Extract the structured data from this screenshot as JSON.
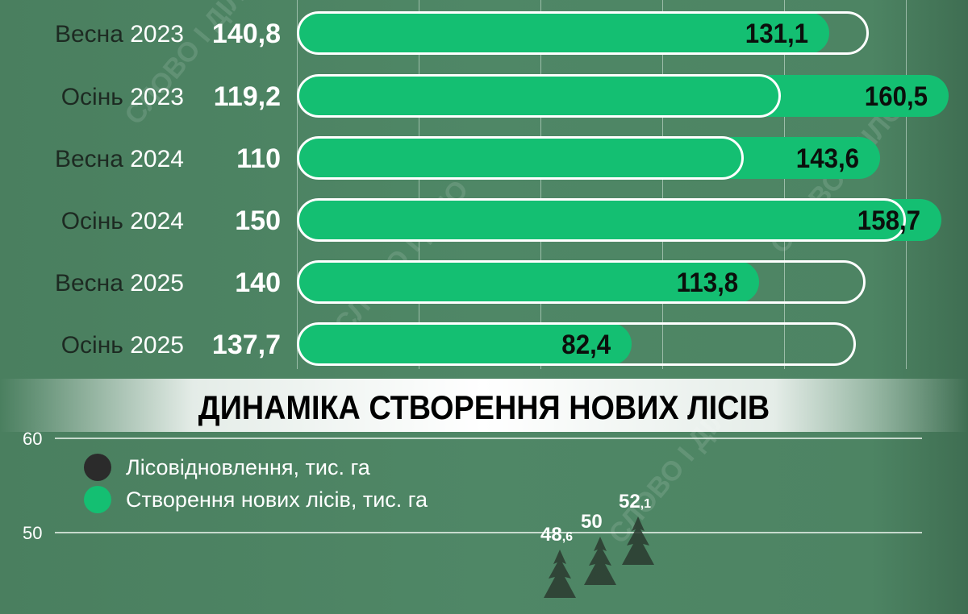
{
  "watermark": "СЛОВО І ДІЛО",
  "colors": {
    "background": "#4e8564",
    "actual_bar": "#14bf72",
    "plan_outline": "#ffffff",
    "reforestation_dot": "#2b2b2b",
    "new_forest_dot": "#14bf72"
  },
  "chart_data": [
    {
      "type": "bar",
      "orientation": "horizontal",
      "categories": [
        {
          "season": "Весна",
          "year": "2023"
        },
        {
          "season": "Осінь",
          "year": "2023"
        },
        {
          "season": "Весна",
          "year": "2024"
        },
        {
          "season": "Осінь",
          "year": "2024"
        },
        {
          "season": "Весна",
          "year": "2025"
        },
        {
          "season": "Осінь",
          "year": "2025"
        }
      ],
      "series": [
        {
          "style": "outline",
          "values": [
            140.8,
            119.2,
            110,
            150,
            140,
            137.7
          ],
          "labels": [
            "140,8",
            "119,2",
            "110",
            "150",
            "140",
            "137,7"
          ]
        },
        {
          "style": "filled",
          "values": [
            131.1,
            160.5,
            143.6,
            158.7,
            113.8,
            82.4
          ],
          "labels": [
            "131,1",
            "160,5",
            "143,6",
            "158,7",
            "113,8",
            "82,4"
          ]
        }
      ],
      "xlim": [
        0,
        170
      ],
      "grid": true
    },
    {
      "type": "scatter",
      "title": "ДИНАМІКА СТВОРЕННЯ НОВИХ ЛІСІВ",
      "y_ticks": [
        "60",
        "50"
      ],
      "ylim_visible": [
        48,
        60
      ],
      "grid": true,
      "legend": {
        "placement": "top-left",
        "items": [
          "Лісовідновлення, тис. га",
          "Створення нових лісів, тис. га"
        ]
      },
      "points": [
        {
          "value": 48.6,
          "int": "48",
          "dec": ",6"
        },
        {
          "value": 50,
          "int": "50",
          "dec": ""
        },
        {
          "value": 52.1,
          "int": "52",
          "dec": ",1"
        }
      ]
    }
  ]
}
